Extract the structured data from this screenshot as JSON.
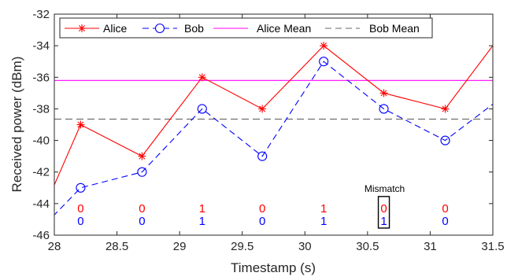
{
  "chart_data": {
    "type": "line",
    "xlabel": "Timestamp (s)",
    "ylabel": "Received power (dBm)",
    "xlim": [
      28,
      31.5
    ],
    "ylim": [
      -46,
      -32
    ],
    "xticks": [
      28,
      28.5,
      29,
      29.5,
      30,
      30.5,
      31,
      31.5
    ],
    "yticks": [
      -46,
      -44,
      -42,
      -40,
      -38,
      -36,
      -34,
      -32
    ],
    "xtick_labels": [
      "28",
      "28.5",
      "29",
      "29.5",
      "30",
      "30.5",
      "31",
      "31.5"
    ],
    "ytick_labels": [
      "-46",
      "-44",
      "-42",
      "-40",
      "-38",
      "-36",
      "-34",
      "-32"
    ],
    "grid": false,
    "legend_position": "top",
    "series": [
      {
        "name": "Alice",
        "color": "#ff0000",
        "marker": "asterisk",
        "line_style": "solid",
        "x": [
          27.99,
          28.21,
          28.7,
          29.18,
          29.66,
          30.15,
          30.63,
          31.12,
          31.5
        ],
        "y": [
          -43,
          -39,
          -41,
          -36,
          -38,
          -34,
          -37,
          -38,
          -34
        ],
        "marker_indices": [
          1,
          2,
          3,
          4,
          5,
          6,
          7
        ]
      },
      {
        "name": "Bob",
        "color": "#0000ff",
        "marker": "circle",
        "line_style": "dashed",
        "x": [
          27.99,
          28.21,
          28.7,
          29.18,
          29.66,
          30.15,
          30.63,
          31.12,
          31.5
        ],
        "y": [
          -44.8,
          -43,
          -42,
          -38,
          -41,
          -35,
          -38,
          -40,
          -37.7
        ],
        "marker_indices": [
          1,
          2,
          3,
          4,
          5,
          6,
          7
        ]
      },
      {
        "name": "Alice Mean",
        "color": "#ff00ff",
        "line_style": "solid",
        "y": -36.2
      },
      {
        "name": "Bob Mean",
        "color": "#666666",
        "line_style": "dashed",
        "y": -38.65
      }
    ],
    "bits": {
      "x": [
        28.21,
        28.7,
        29.18,
        29.66,
        30.15,
        30.63,
        31.12
      ],
      "alice": [
        "0",
        "0",
        "1",
        "0",
        "1",
        "0",
        "0"
      ],
      "bob": [
        "0",
        "0",
        "1",
        "0",
        "1",
        "1",
        "0"
      ],
      "alice_y": -44.3,
      "bob_y": -45.1
    },
    "annotation": {
      "text": "Mismatch",
      "x": 30.63
    }
  }
}
